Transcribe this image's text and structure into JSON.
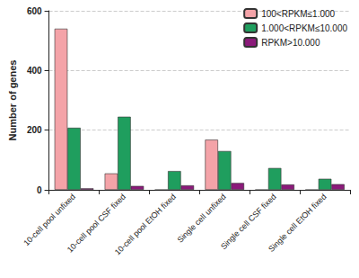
{
  "chart_data": {
    "type": "bar",
    "y_label": "Number of genes",
    "categories": [
      "10-cell pool unfixed",
      "10-cell pool CSF fixed",
      "10-cell pool EtOH fixed",
      "Single cell unfixed",
      "Single cell CSF fixed",
      "Single cell EtOH fixed"
    ],
    "series": [
      {
        "name": "100<RPKM≤1.000",
        "color": "#f4a3a8",
        "values": [
          540,
          55,
          0,
          168,
          0,
          0
        ]
      },
      {
        "name": "1.000<RPKM≤10.000",
        "color": "#1f9e5e",
        "values": [
          208,
          245,
          63,
          130,
          73,
          37
        ]
      },
      {
        "name": "RPKM>10.000",
        "color": "#8b1a7a",
        "values": [
          5,
          13,
          15,
          23,
          18,
          19
        ]
      }
    ],
    "ylim": [
      0,
      600
    ],
    "yticks": [
      0,
      200,
      400,
      600
    ],
    "grid": true,
    "legend": "upper right"
  }
}
